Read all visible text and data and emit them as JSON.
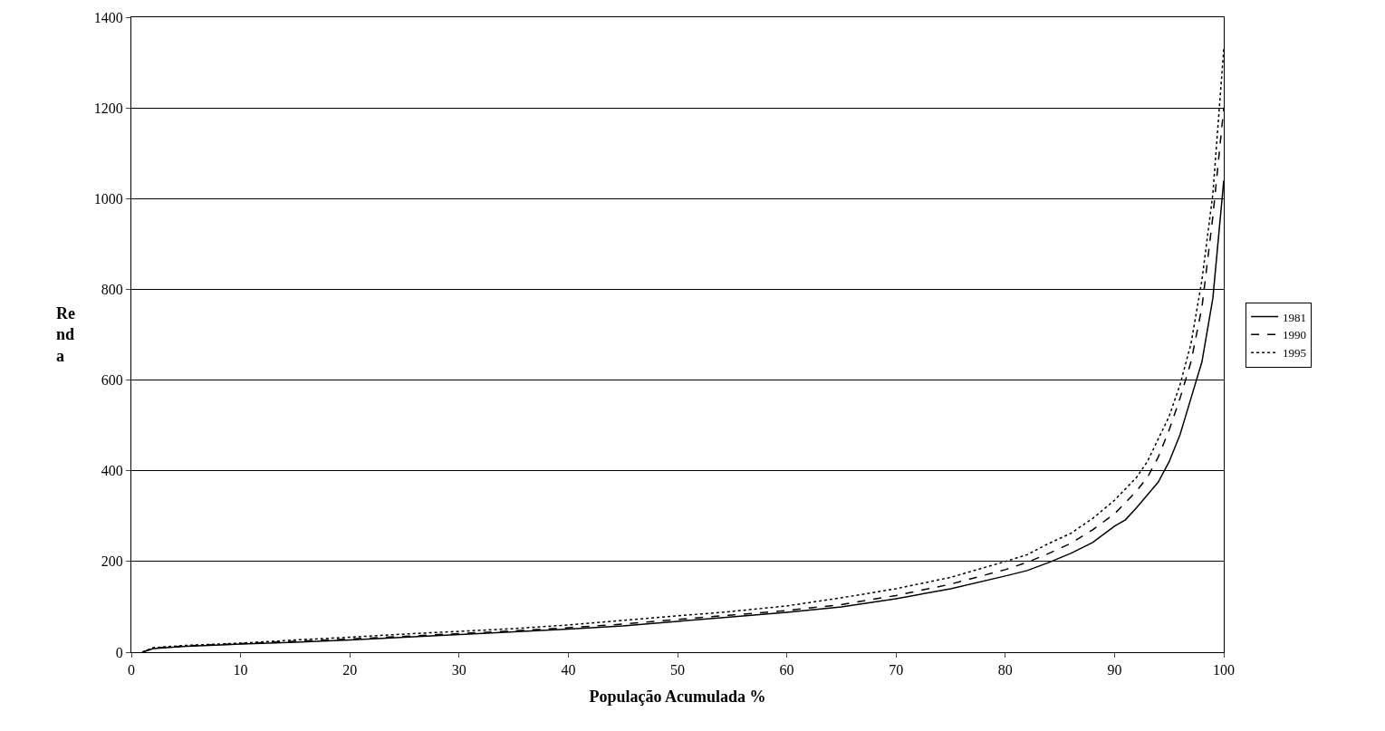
{
  "chart_data": {
    "type": "line",
    "xlabel": "População Acumulada %",
    "ylabel": "Re\nnd\na",
    "xlim": [
      0,
      100
    ],
    "xticks": [
      0,
      10,
      20,
      30,
      40,
      50,
      60,
      70,
      80,
      90,
      100
    ],
    "ylim": [
      0,
      1400
    ],
    "yticks": [
      0,
      200,
      400,
      600,
      800,
      1000,
      1200,
      1400
    ],
    "grid": "y",
    "legend": "right",
    "marker": "none",
    "series": [
      {
        "name": "1981",
        "color": "#000000",
        "line_style": "solid",
        "x": [
          1,
          2,
          5,
          10,
          15,
          20,
          25,
          30,
          35,
          40,
          45,
          50,
          55,
          60,
          65,
          70,
          75,
          80,
          82,
          84,
          86,
          88,
          90,
          91,
          92,
          94,
          95,
          96,
          97,
          98,
          99,
          100
        ],
        "values": [
          0,
          8,
          13,
          18,
          22,
          27,
          33,
          39,
          45,
          51,
          58,
          68,
          78,
          88,
          100,
          118,
          140,
          168,
          180,
          198,
          218,
          242,
          278,
          292,
          318,
          375,
          420,
          480,
          560,
          640,
          780,
          1040
        ]
      },
      {
        "name": "1990",
        "color": "#000000",
        "line_style": "dashed",
        "x": [
          1,
          2,
          5,
          10,
          15,
          20,
          25,
          30,
          35,
          40,
          45,
          50,
          55,
          60,
          65,
          70,
          75,
          80,
          82,
          84,
          86,
          88,
          90,
          92,
          93,
          94,
          95,
          96,
          97,
          98,
          99,
          100
        ],
        "values": [
          0,
          9,
          14,
          19,
          24,
          29,
          35,
          41,
          47,
          54,
          62,
          72,
          82,
          92,
          105,
          125,
          150,
          182,
          198,
          218,
          240,
          270,
          305,
          355,
          385,
          430,
          490,
          560,
          640,
          760,
          960,
          1200
        ]
      },
      {
        "name": "1995",
        "color": "#000000",
        "line_style": "dotted",
        "x": [
          1,
          2,
          5,
          10,
          15,
          20,
          25,
          30,
          35,
          40,
          45,
          50,
          55,
          60,
          65,
          70,
          75,
          80,
          82,
          84,
          86,
          88,
          90,
          92,
          93,
          94,
          95,
          96,
          97,
          98,
          99,
          100
        ],
        "values": [
          0,
          10,
          15,
          20,
          27,
          33,
          40,
          46,
          52,
          60,
          70,
          80,
          90,
          102,
          120,
          140,
          165,
          200,
          215,
          240,
          262,
          295,
          335,
          385,
          420,
          470,
          520,
          590,
          680,
          820,
          1010,
          1330
        ]
      }
    ]
  }
}
